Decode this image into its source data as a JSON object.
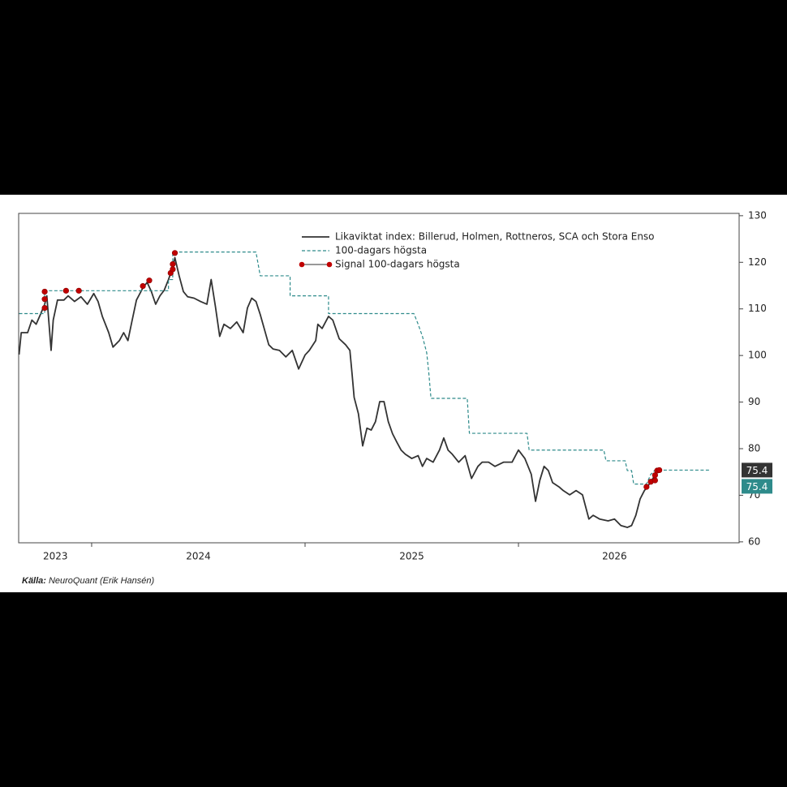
{
  "chart_data": {
    "type": "line",
    "legend": "top-center",
    "source_label": "Källa:",
    "source": "NeuroQuant (Erik Hansén)",
    "xlim": [
      2023.658,
      2027.034
    ],
    "xticks": [
      2024,
      2025,
      2026
    ],
    "x_labels": [
      {
        "value": 2023.83,
        "label": "2023"
      },
      {
        "value": 2024.5,
        "label": "2024"
      },
      {
        "value": 2025.5,
        "label": "2025"
      },
      {
        "value": 2026.45,
        "label": "2026"
      }
    ],
    "ylim": [
      59.8,
      130.5
    ],
    "yticks": [
      60,
      70,
      80,
      90,
      100,
      110,
      120,
      130
    ],
    "series": [
      {
        "name": "Likaviktat index: Billerud, Holmen, Rottneros, SCA och Stora Enso",
        "color": "#333333",
        "style": "solid",
        "end_label": "75.4",
        "x": [
          2023.66,
          2023.67,
          2023.7,
          2023.72,
          2023.74,
          2023.76,
          2023.78,
          2023.79,
          2023.81,
          2023.82,
          2023.84,
          2023.87,
          2023.89,
          2023.92,
          2023.95,
          2023.98,
          2024.01,
          2024.03,
          2024.05,
          2024.08,
          2024.1,
          2024.13,
          2024.15,
          2024.17,
          2024.19,
          2024.21,
          2024.24,
          2024.26,
          2024.28,
          2024.3,
          2024.32,
          2024.34,
          2024.36,
          2024.38,
          2024.39,
          2024.41,
          2024.43,
          2024.45,
          2024.48,
          2024.51,
          2024.54,
          2024.56,
          2024.58,
          2024.6,
          2024.62,
          2024.65,
          2024.68,
          2024.71,
          2024.73,
          2024.75,
          2024.77,
          2024.79,
          2024.83,
          2024.85,
          2024.88,
          2024.91,
          2024.94,
          2024.97,
          2025.0,
          2025.02,
          2025.05,
          2025.06,
          2025.08,
          2025.11,
          2025.13,
          2025.16,
          2025.19,
          2025.21,
          2025.22,
          2025.23,
          2025.25,
          2025.27,
          2025.29,
          2025.31,
          2025.33,
          2025.35,
          2025.37,
          2025.39,
          2025.41,
          2025.43,
          2025.45,
          2025.47,
          2025.5,
          2025.53,
          2025.55,
          2025.57,
          2025.6,
          2025.63,
          2025.65,
          2025.67,
          2025.69,
          2025.72,
          2025.75,
          2025.78,
          2025.81,
          2025.83,
          2025.86,
          2025.89,
          2025.93,
          2025.97,
          2026.0,
          2026.03,
          2026.06,
          2026.08,
          2026.1,
          2026.12,
          2026.14,
          2026.16,
          2026.19,
          2026.21,
          2026.24,
          2026.27,
          2026.3,
          2026.33,
          2026.35,
          2026.38,
          2026.42,
          2026.45,
          2026.48,
          2026.51,
          2026.53,
          2026.55,
          2026.57,
          2026.59,
          2026.61,
          2026.63,
          2026.65
        ],
        "values": [
          100.2,
          104.9,
          104.9,
          107.6,
          106.7,
          108.8,
          111.0,
          112.8,
          101.1,
          107.6,
          111.9,
          111.9,
          112.8,
          111.6,
          112.6,
          111.0,
          113.3,
          111.6,
          108.4,
          104.9,
          101.8,
          103.2,
          104.9,
          103.2,
          107.6,
          111.9,
          114.5,
          115.7,
          113.7,
          111.0,
          112.8,
          114.0,
          116.3,
          118.9,
          121.0,
          117.1,
          113.7,
          112.6,
          112.3,
          111.6,
          111.0,
          116.3,
          110.5,
          104.1,
          106.7,
          105.8,
          107.2,
          104.9,
          110.2,
          112.3,
          111.6,
          108.8,
          102.3,
          101.4,
          101.1,
          99.7,
          101.1,
          97.1,
          100.1,
          101.1,
          103.2,
          106.7,
          105.8,
          108.4,
          107.6,
          103.6,
          102.3,
          101.1,
          96.2,
          91.0,
          87.5,
          80.6,
          84.4,
          84.0,
          85.8,
          90.1,
          90.1,
          85.8,
          83.2,
          81.4,
          79.7,
          78.8,
          77.9,
          78.5,
          76.2,
          77.9,
          77.1,
          79.7,
          82.3,
          79.7,
          78.8,
          77.1,
          78.5,
          73.6,
          76.2,
          77.1,
          77.1,
          76.2,
          77.1,
          77.1,
          79.7,
          77.9,
          74.5,
          68.7,
          73.2,
          76.2,
          75.3,
          72.7,
          71.8,
          71.0,
          70.1,
          71.0,
          70.1,
          64.9,
          65.7,
          64.9,
          64.5,
          64.9,
          63.5,
          63.1,
          63.5,
          65.7,
          69.2,
          71.0,
          72.2,
          73.6,
          75.4
        ]
      },
      {
        "name": "100-dagars högsta",
        "color": "#2e8b8b",
        "style": "dashed",
        "end_label": "75.4",
        "x": [
          2023.66,
          2023.78,
          2023.78,
          2024.36,
          2024.36,
          2024.38,
          2024.38,
          2024.77,
          2024.79,
          2024.93,
          2024.93,
          2025.11,
          2025.11,
          2025.51,
          2025.53,
          2025.55,
          2025.57,
          2025.58,
          2025.59,
          2025.76,
          2025.77,
          2026.04,
          2026.05,
          2026.4,
          2026.41,
          2026.5,
          2026.51,
          2026.53,
          2026.54,
          2026.6,
          2026.62,
          2026.64,
          2026.9
        ],
        "values": [
          109.0,
          109.0,
          113.9,
          113.9,
          116.3,
          116.3,
          122.2,
          122.2,
          117.1,
          117.1,
          112.8,
          112.8,
          109.0,
          109.0,
          106.7,
          104.1,
          100.6,
          96.2,
          90.8,
          90.8,
          83.3,
          83.3,
          79.7,
          79.7,
          77.4,
          77.4,
          75.3,
          75.3,
          72.4,
          72.4,
          74.5,
          75.4,
          75.4
        ]
      },
      {
        "name": "Signal 100-dagars högsta",
        "color": "#c00000",
        "style": "markers",
        "x": [
          2023.78,
          2023.78,
          2023.78,
          2023.88,
          2023.94,
          2024.24,
          2024.27,
          2024.37,
          2024.38,
          2024.38,
          2024.39,
          2026.6,
          2026.62,
          2026.64,
          2026.64,
          2026.65,
          2026.66
        ],
        "values": [
          110.2,
          112.1,
          113.7,
          113.9,
          113.9,
          114.9,
          116.1,
          117.7,
          118.5,
          119.6,
          122.0,
          71.8,
          72.9,
          73.2,
          74.3,
          75.3,
          75.4
        ]
      }
    ]
  }
}
